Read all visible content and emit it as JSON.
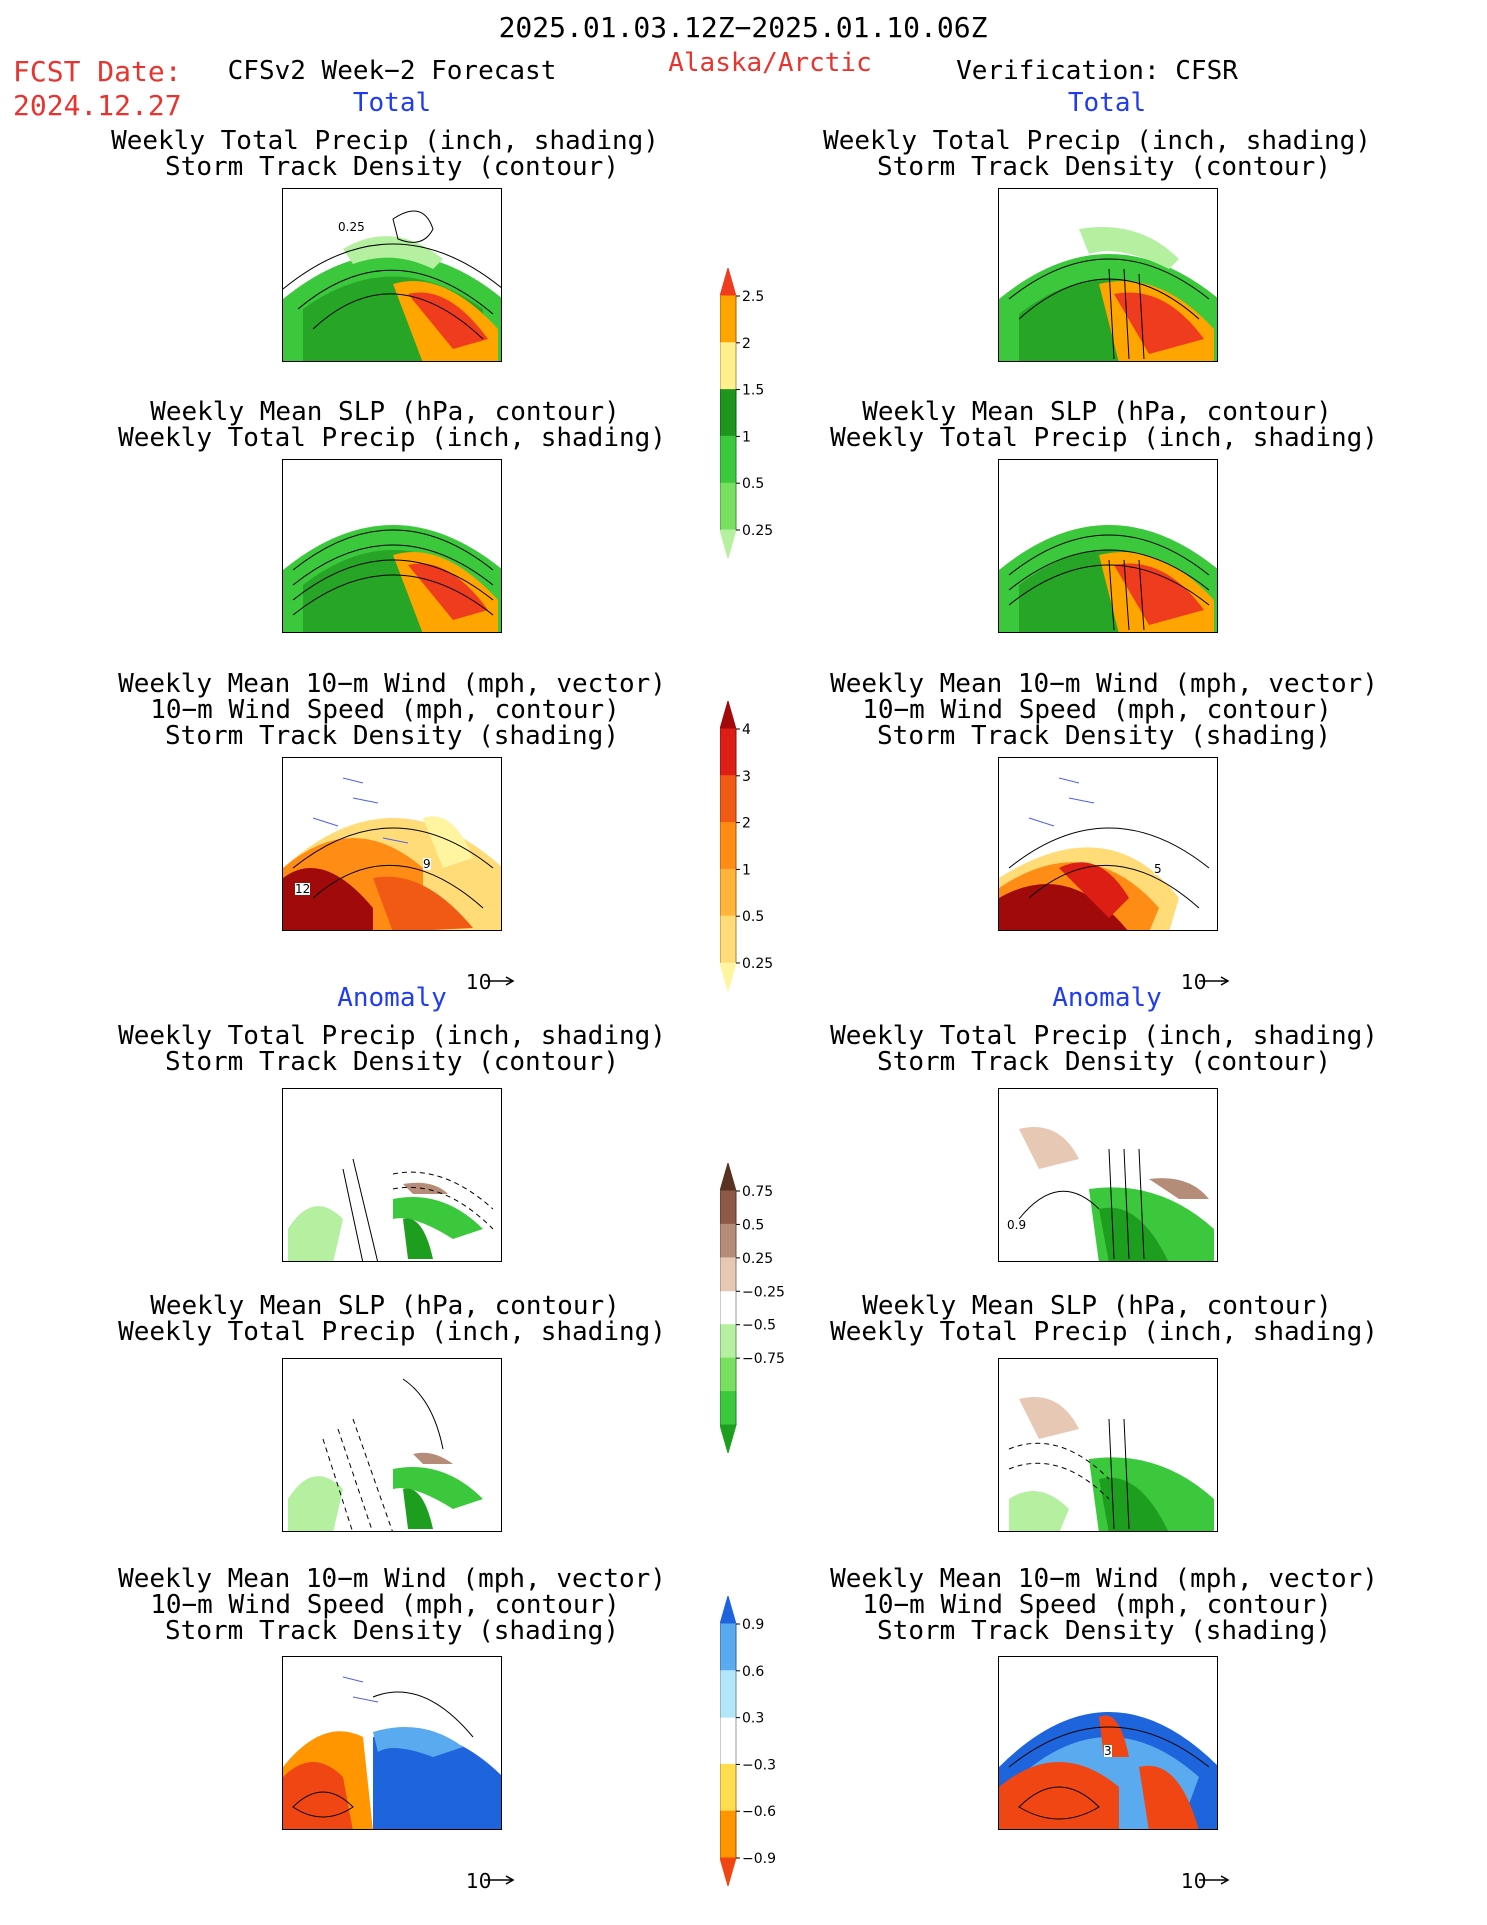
{
  "header": {
    "valid_period": "2025.01.03.12Z−2025.01.10.06Z",
    "fcst_date_label": "FCST Date:",
    "fcst_date_value": "2024.12.27",
    "forecast_title": "CFSv2 Week−2 Forecast",
    "region": "Alaska/Arctic",
    "verification": "Verification: CFSR"
  },
  "sections": {
    "total": "Total",
    "anomaly": "Anomaly"
  },
  "panel_titles": {
    "precip_storm": [
      "Weekly Total Precip (inch, shading)",
      "Storm Track Density (contour)"
    ],
    "slp_precip": [
      "Weekly Mean SLP (hPa, contour)",
      "Weekly Total Precip (inch, shading)"
    ],
    "wind_storm": [
      "Weekly Mean 10−m Wind (mph, vector)",
      "10−m Wind Speed (mph, contour)",
      "Storm Track Density (shading)"
    ]
  },
  "vector_reference": "10",
  "contour_labels": {
    "fcst_total_precip": "0.25",
    "fcst_total_wind_a": "12",
    "fcst_total_wind_b": "9",
    "cfsr_total_wind": "5",
    "cfsr_anom_precip": "0.9",
    "cfsr_anom_wind": "3"
  },
  "chart_data": [
    {
      "type": "heatmap",
      "name": "precip_total_colorbar",
      "levels": [
        "0.25",
        "0.5",
        "1",
        "1.5",
        "2",
        "2.5"
      ],
      "colors": [
        "#b4f0a0",
        "#78e060",
        "#3cc83c",
        "#1e961e",
        "#fff08c",
        "#ffa500",
        "#f03c1e"
      ]
    },
    {
      "type": "heatmap",
      "name": "storm_density_total_colorbar",
      "levels": [
        "0.25",
        "0.5",
        "1",
        "2",
        "3",
        "4"
      ],
      "colors": [
        "#fff5a0",
        "#ffdc78",
        "#ffb43c",
        "#ff8c14",
        "#f05a14",
        "#dc1e14",
        "#a00a0a"
      ]
    },
    {
      "type": "heatmap",
      "name": "precip_anomaly_colorbar",
      "levels": [
        "0.75",
        "0.5",
        "0.25",
        "−0.25",
        "−0.5",
        "−0.75"
      ],
      "colors": [
        "#1e9e1e",
        "#3cc83c",
        "#78e060",
        "#b4f0a0",
        "#ffffff",
        "#e6c8b4",
        "#b48c78",
        "#8c5a46",
        "#5a3222"
      ]
    },
    {
      "type": "heatmap",
      "name": "storm_density_anomaly_colorbar",
      "levels": [
        "0.9",
        "0.6",
        "0.3",
        "−0.3",
        "−0.6",
        "−0.9"
      ],
      "colors": [
        "#f04614",
        "#ff9600",
        "#ffdc50",
        "#ffffff",
        "#b4e6fa",
        "#5aaaf0",
        "#1e64dc"
      ]
    }
  ]
}
